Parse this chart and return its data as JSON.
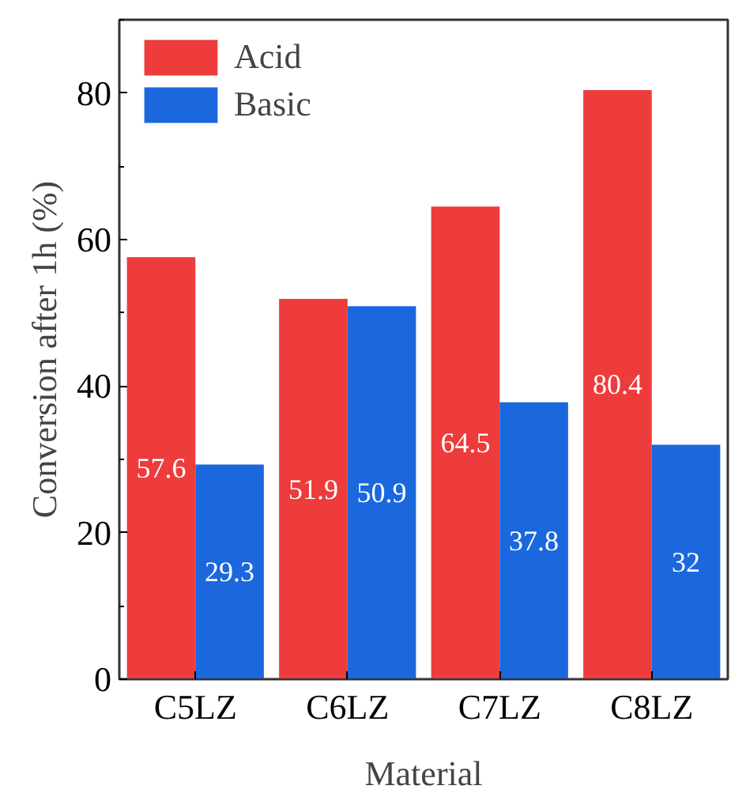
{
  "chart_data": {
    "type": "bar",
    "xlabel": "Material",
    "ylabel": "Conversion after 1h (%)",
    "categories": [
      "C5LZ",
      "C6LZ",
      "C7LZ",
      "C8LZ"
    ],
    "series": [
      {
        "name": "Acid",
        "color": "#ee3b3b",
        "values": [
          57.6,
          51.9,
          64.5,
          80.4
        ]
      },
      {
        "name": "Basic",
        "color": "#1b67dd",
        "values": [
          29.3,
          50.9,
          37.8,
          32
        ]
      }
    ],
    "ylim": [
      0,
      90
    ],
    "yticks": [
      0,
      20,
      40,
      60,
      80
    ],
    "grid": false,
    "legend": "top left",
    "data_labels": true
  }
}
